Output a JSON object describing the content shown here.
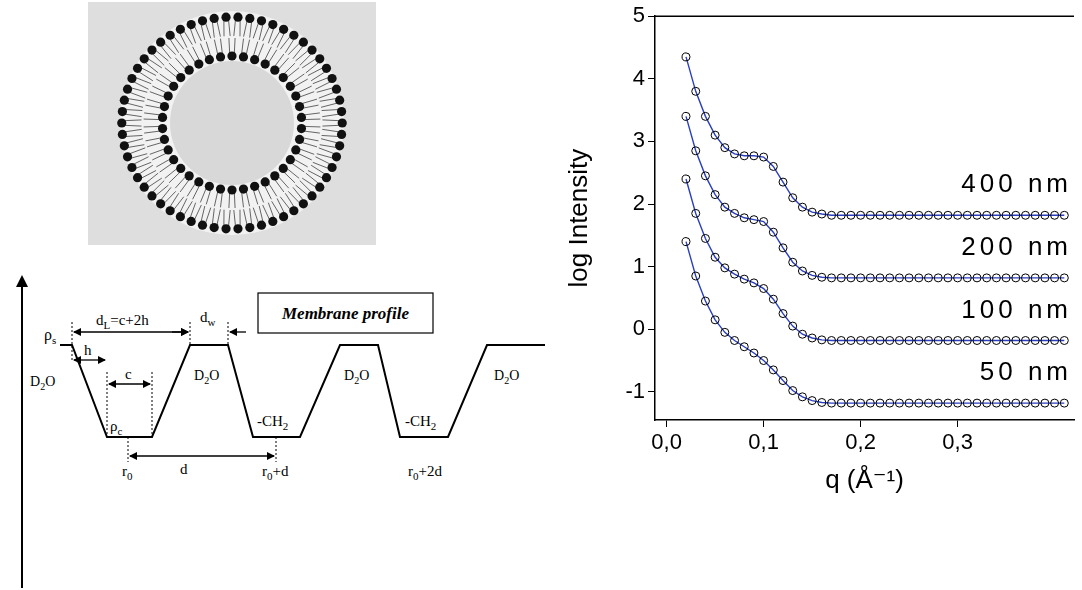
{
  "chart_data": {
    "type": "line",
    "xlabel": "q (Å⁻¹)",
    "ylabel": "log Intensity",
    "xlim": [
      -0.012,
      0.42
    ],
    "xticks": [
      {
        "value": 0,
        "label": "0,0"
      },
      {
        "value": 0.1,
        "label": "0,1"
      },
      {
        "value": 0.2,
        "label": "0,2"
      },
      {
        "value": 0.3,
        "label": "0,3"
      }
    ],
    "ylim": [
      -1.45,
      5
    ],
    "yticks": [
      -1,
      0,
      1,
      2,
      3,
      4,
      5
    ],
    "grid": false,
    "x": [
      0.02,
      0.03,
      0.04,
      0.05,
      0.06,
      0.07,
      0.08,
      0.09,
      0.1,
      0.11,
      0.12,
      0.13,
      0.14,
      0.15,
      0.16,
      0.17,
      0.18,
      0.19,
      0.2,
      0.21,
      0.22,
      0.23,
      0.24,
      0.25,
      0.26,
      0.27,
      0.28,
      0.29,
      0.3,
      0.31,
      0.32,
      0.33,
      0.34,
      0.35,
      0.36,
      0.37,
      0.38,
      0.39,
      0.4,
      0.41
    ],
    "series": [
      {
        "name": "400 nm",
        "color": "#000000",
        "marker": "circle",
        "line_style": "none",
        "values": [
          4.35,
          3.8,
          3.4,
          3.1,
          2.9,
          2.8,
          2.77,
          2.77,
          2.75,
          2.6,
          2.35,
          2.1,
          1.95,
          1.87,
          1.84,
          1.82,
          1.82,
          1.82,
          1.82,
          1.82,
          1.82,
          1.82,
          1.82,
          1.82,
          1.82,
          1.82,
          1.82,
          1.82,
          1.82,
          1.82,
          1.82,
          1.82,
          1.82,
          1.82,
          1.82,
          1.82,
          1.82,
          1.82,
          1.82,
          1.82
        ]
      },
      {
        "color": "#2a3fbf",
        "marker": "none",
        "line_style": "solid",
        "values": [
          4.35,
          3.8,
          3.4,
          3.1,
          2.9,
          2.8,
          2.77,
          2.77,
          2.75,
          2.6,
          2.35,
          2.1,
          1.95,
          1.87,
          1.84,
          1.82,
          1.82,
          1.82,
          1.82,
          1.82,
          1.82,
          1.82,
          1.82,
          1.82,
          1.82,
          1.82,
          1.82,
          1.82,
          1.82,
          1.82,
          1.82,
          1.82,
          1.82,
          1.82,
          1.82,
          1.82,
          1.82,
          1.82,
          1.82,
          1.82
        ]
      },
      {
        "name": "200 nm",
        "color": "#000000",
        "marker": "circle",
        "line_style": "none",
        "values": [
          3.4,
          2.85,
          2.45,
          2.15,
          1.95,
          1.85,
          1.78,
          1.75,
          1.72,
          1.55,
          1.3,
          1.07,
          0.93,
          0.86,
          0.83,
          0.82,
          0.82,
          0.82,
          0.82,
          0.82,
          0.82,
          0.82,
          0.82,
          0.82,
          0.82,
          0.82,
          0.82,
          0.82,
          0.82,
          0.82,
          0.82,
          0.82,
          0.82,
          0.82,
          0.82,
          0.82,
          0.82,
          0.82,
          0.82,
          0.82
        ]
      },
      {
        "color": "#2a3fbf",
        "marker": "none",
        "line_style": "solid",
        "values": [
          3.4,
          2.85,
          2.45,
          2.15,
          1.95,
          1.85,
          1.78,
          1.75,
          1.72,
          1.55,
          1.3,
          1.07,
          0.93,
          0.86,
          0.83,
          0.82,
          0.82,
          0.82,
          0.82,
          0.82,
          0.82,
          0.82,
          0.82,
          0.82,
          0.82,
          0.82,
          0.82,
          0.82,
          0.82,
          0.82,
          0.82,
          0.82,
          0.82,
          0.82,
          0.82,
          0.82,
          0.82,
          0.82,
          0.82,
          0.82
        ]
      },
      {
        "name": "100 nm",
        "color": "#000000",
        "marker": "circle",
        "line_style": "none",
        "values": [
          2.4,
          1.85,
          1.45,
          1.15,
          0.98,
          0.88,
          0.8,
          0.74,
          0.65,
          0.48,
          0.25,
          0.05,
          -0.08,
          -0.14,
          -0.17,
          -0.18,
          -0.18,
          -0.18,
          -0.18,
          -0.18,
          -0.18,
          -0.18,
          -0.18,
          -0.18,
          -0.18,
          -0.18,
          -0.18,
          -0.18,
          -0.18,
          -0.18,
          -0.18,
          -0.18,
          -0.18,
          -0.18,
          -0.18,
          -0.18,
          -0.18,
          -0.18,
          -0.18,
          -0.18
        ]
      },
      {
        "color": "#2a3fbf",
        "marker": "none",
        "line_style": "solid",
        "values": [
          2.4,
          1.85,
          1.45,
          1.15,
          0.98,
          0.88,
          0.8,
          0.74,
          0.65,
          0.48,
          0.25,
          0.05,
          -0.08,
          -0.14,
          -0.17,
          -0.18,
          -0.18,
          -0.18,
          -0.18,
          -0.18,
          -0.18,
          -0.18,
          -0.18,
          -0.18,
          -0.18,
          -0.18,
          -0.18,
          -0.18,
          -0.18,
          -0.18,
          -0.18,
          -0.18,
          -0.18,
          -0.18,
          -0.18,
          -0.18,
          -0.18,
          -0.18,
          -0.18,
          -0.18
        ]
      },
      {
        "name": "50 nm",
        "color": "#000000",
        "marker": "circle",
        "line_style": "none",
        "values": [
          1.4,
          0.85,
          0.45,
          0.15,
          -0.05,
          -0.18,
          -0.28,
          -0.38,
          -0.5,
          -0.65,
          -0.82,
          -0.98,
          -1.08,
          -1.14,
          -1.17,
          -1.18,
          -1.18,
          -1.18,
          -1.18,
          -1.18,
          -1.18,
          -1.18,
          -1.18,
          -1.18,
          -1.18,
          -1.18,
          -1.18,
          -1.18,
          -1.18,
          -1.18,
          -1.18,
          -1.18,
          -1.18,
          -1.18,
          -1.18,
          -1.18,
          -1.18,
          -1.18,
          -1.18,
          -1.18
        ]
      },
      {
        "color": "#2a3fbf",
        "marker": "none",
        "line_style": "solid",
        "values": [
          1.4,
          0.85,
          0.45,
          0.15,
          -0.05,
          -0.18,
          -0.28,
          -0.38,
          -0.5,
          -0.65,
          -0.82,
          -0.98,
          -1.08,
          -1.14,
          -1.17,
          -1.18,
          -1.18,
          -1.18,
          -1.18,
          -1.18,
          -1.18,
          -1.18,
          -1.18,
          -1.18,
          -1.18,
          -1.18,
          -1.18,
          -1.18,
          -1.18,
          -1.18,
          -1.18,
          -1.18,
          -1.18,
          -1.18,
          -1.18,
          -1.18,
          -1.18,
          -1.18,
          -1.18,
          -1.18
        ]
      }
    ]
  },
  "membrane_profile": {
    "title": "Membrane profile",
    "labels": {
      "rho_s": {
        "base": "ρ",
        "sub": "s"
      },
      "h": {
        "base": "h"
      },
      "d_L": {
        "base": "d",
        "sub": "L",
        "after": "=c+2h"
      },
      "d_w": {
        "base": "d",
        "sub": "w"
      },
      "c": {
        "base": "c"
      },
      "rho_c": {
        "base": "ρ",
        "sub": "c"
      },
      "water_1": {
        "base": "D",
        "sub": "2",
        "after": "O"
      },
      "water_2": {
        "base": "D",
        "sub": "2",
        "after": "O"
      },
      "water_3": {
        "base": "D",
        "sub": "2",
        "after": "O"
      },
      "water_4": {
        "base": "D",
        "sub": "2",
        "after": "O"
      },
      "chain_1": {
        "base": "-CH",
        "sub": "2"
      },
      "chain_2": {
        "base": "-CH",
        "sub": "2"
      },
      "r0": {
        "base": "r",
        "sub": "0"
      },
      "d": {
        "base": "d"
      },
      "r0_d": {
        "base": "r",
        "sub": "0",
        "after": "+d"
      },
      "r0_2d": {
        "base": "r",
        "sub": "0",
        "after": "+2d"
      }
    }
  }
}
